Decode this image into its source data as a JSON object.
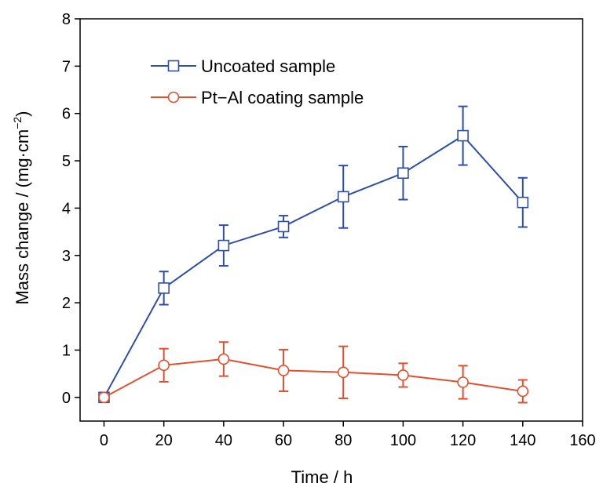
{
  "chart_data": {
    "type": "line",
    "xlabel": "Time / h",
    "ylabel": {
      "main": "Mass change / (mg·cm",
      "sup": "−2",
      "close": ")"
    },
    "xlim": [
      -8,
      160
    ],
    "ylim": [
      -0.5,
      8
    ],
    "x_ticks": [
      "0",
      "20",
      "40",
      "60",
      "80",
      "100",
      "120",
      "140",
      "160"
    ],
    "y_ticks": [
      "0",
      "1",
      "2",
      "3",
      "4",
      "5",
      "6",
      "7",
      "8"
    ],
    "legend_position": "top-left",
    "grid": false,
    "series": [
      {
        "name": "Uncoated sample",
        "color": "#2f4ea8",
        "marker": "square",
        "x": [
          0,
          20,
          40,
          60,
          80,
          100,
          120,
          140
        ],
        "y": [
          0,
          2.31,
          3.21,
          3.61,
          4.24,
          4.74,
          5.53,
          4.12
        ],
        "error": [
          0,
          0.35,
          0.43,
          0.23,
          0.66,
          0.56,
          0.62,
          0.52
        ]
      },
      {
        "name": "Pt−Al coating sample",
        "color": "#e0502f",
        "marker": "circle",
        "x": [
          0,
          20,
          40,
          60,
          80,
          100,
          120,
          140
        ],
        "y": [
          0,
          0.68,
          0.81,
          0.57,
          0.53,
          0.47,
          0.32,
          0.13
        ],
        "error": [
          0,
          0.35,
          0.36,
          0.44,
          0.55,
          0.25,
          0.35,
          0.24
        ]
      }
    ]
  }
}
